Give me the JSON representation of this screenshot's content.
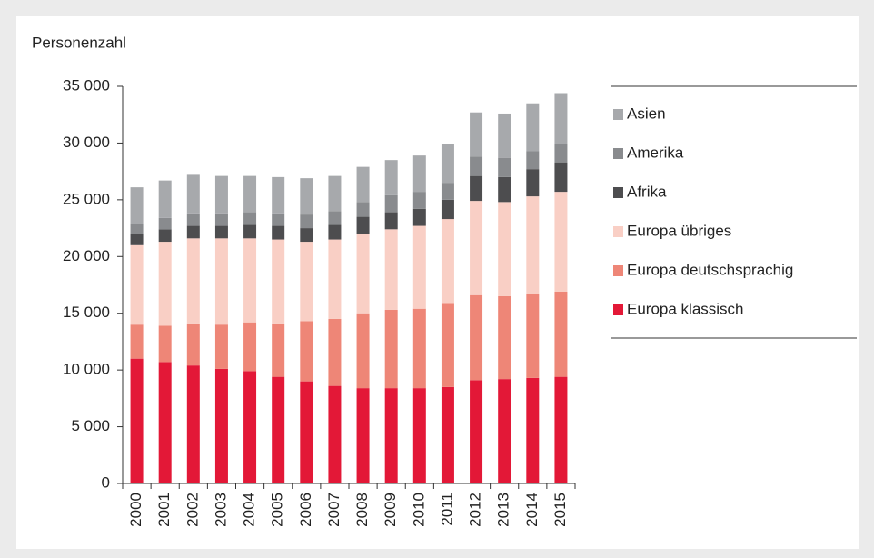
{
  "chart_data": {
    "type": "bar",
    "stacked": true,
    "ylabel": "Personenzahl",
    "categories": [
      "2000",
      "2001",
      "2002",
      "2003",
      "2004",
      "2005",
      "2006",
      "2007",
      "2008",
      "2009",
      "2010",
      "2011",
      "2012",
      "2013",
      "2014",
      "2015"
    ],
    "series": [
      {
        "name": "Europa klassisch",
        "color": "#e31837",
        "values": [
          11000,
          10700,
          10400,
          10100,
          9900,
          9400,
          9000,
          8600,
          8400,
          8400,
          8400,
          8500,
          9100,
          9200,
          9300,
          9400
        ]
      },
      {
        "name": "Europa deutschsprachig",
        "color": "#ee8677",
        "values": [
          3000,
          3200,
          3700,
          3900,
          4300,
          4700,
          5300,
          5900,
          6600,
          6900,
          7000,
          7400,
          7500,
          7300,
          7400,
          7500
        ]
      },
      {
        "name": "Europa übriges",
        "color": "#f9cfc5",
        "values": [
          7000,
          7400,
          7500,
          7600,
          7400,
          7400,
          7000,
          7000,
          7000,
          7100,
          7300,
          7400,
          8300,
          8300,
          8600,
          8800
        ]
      },
      {
        "name": "Afrika",
        "color": "#4d4d4f",
        "values": [
          1000,
          1100,
          1100,
          1100,
          1200,
          1200,
          1200,
          1300,
          1500,
          1500,
          1500,
          1700,
          2200,
          2200,
          2400,
          2600
        ]
      },
      {
        "name": "Amerika",
        "color": "#898b8e",
        "values": [
          900,
          1000,
          1100,
          1100,
          1100,
          1100,
          1200,
          1200,
          1300,
          1500,
          1500,
          1500,
          1700,
          1700,
          1600,
          1600
        ]
      },
      {
        "name": "Asien",
        "color": "#a7a9ac",
        "values": [
          3200,
          3300,
          3400,
          3300,
          3200,
          3200,
          3200,
          3100,
          3100,
          3100,
          3200,
          3400,
          3900,
          3900,
          4200,
          4500
        ]
      }
    ],
    "ylim": [
      0,
      35000
    ],
    "yticks": [
      0,
      {
        "value": 5000,
        "label": "5 000"
      },
      {
        "value": 10000,
        "label": "10 000"
      },
      {
        "value": 15000,
        "label": "15 000"
      },
      {
        "value": 20000,
        "label": "20 000"
      },
      {
        "value": 25000,
        "label": "25 000"
      },
      {
        "value": 30000,
        "label": "30 000"
      },
      {
        "value": 35000,
        "label": "35 000"
      }
    ],
    "grid": false,
    "legend": "right"
  }
}
